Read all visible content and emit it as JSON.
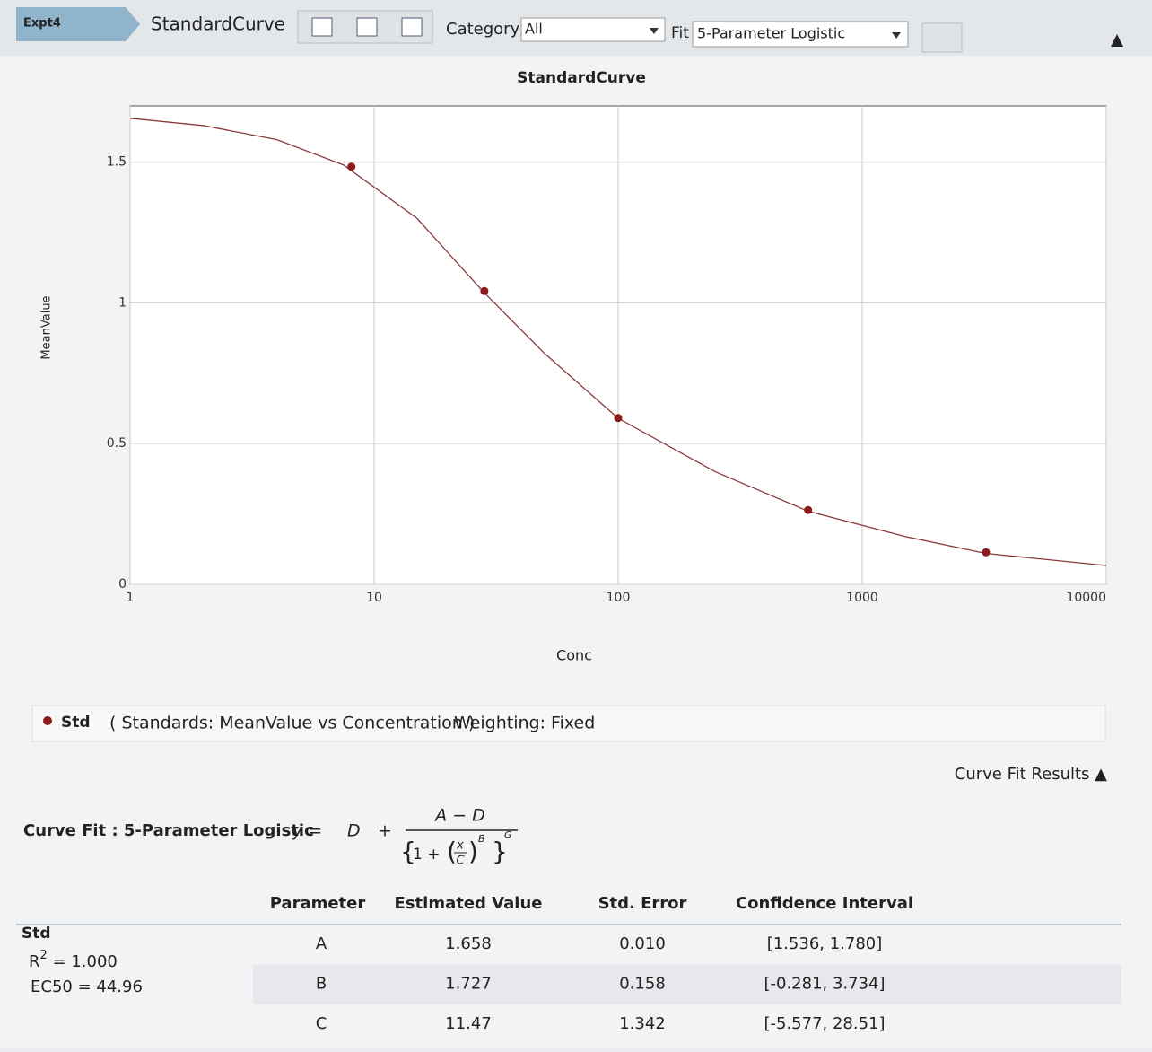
{
  "toolbar": {
    "tab": "Expt4",
    "view": "StandardCurve",
    "category_label": "Category",
    "category_value": "All",
    "fit_label": "Fit",
    "fit_value": "5-Parameter Logistic"
  },
  "chart_data": {
    "type": "line",
    "title": "StandardCurve",
    "x_label": "Conc",
    "y_label": "MeanValue",
    "log_x": true,
    "grid": true,
    "xlim": [
      1,
      10000
    ],
    "xticks": [
      1,
      10,
      100,
      1000,
      10000
    ],
    "ylim": [
      0,
      1.7
    ],
    "yticks": [
      0,
      0.5,
      1,
      1.5
    ],
    "x": [
      8.07,
      28.3,
      100,
      600,
      3215
    ],
    "series": [
      {
        "name": "Std",
        "color": "#8b1a1a",
        "values": [
          1.484,
          1.042,
          0.591,
          0.264,
          0.114
        ]
      },
      {
        "color": "#8b3a3a",
        "x": [
          1,
          2,
          4,
          7.5,
          15,
          28,
          50,
          100,
          250,
          600,
          1500,
          3200,
          10000
        ],
        "values": [
          1.656,
          1.63,
          1.58,
          1.49,
          1.3,
          1.04,
          0.82,
          0.59,
          0.4,
          0.26,
          0.17,
          0.11,
          0.067
        ]
      }
    ]
  },
  "legend": {
    "series": "Std",
    "description": "( Standards: MeanValue vs Concentration )",
    "weighting": "Weighting: Fixed"
  },
  "results_toggle": "Curve Fit Results ▲",
  "fit_title": "Curve Fit : 5-Parameter Logistic",
  "formula": {
    "lhs": "y =",
    "d": "D",
    "plus": "+",
    "numerator": "A − D",
    "one": "1 +",
    "x": "x",
    "c": "C",
    "b": "B",
    "g": "G"
  },
  "summary": {
    "series": "Std",
    "r": "R",
    "r_sup": "2",
    "r_value": " = 1.000",
    "ec50": "EC50 = 44.96"
  },
  "table": {
    "headers": [
      "Parameter",
      "Estimated Value",
      "Std. Error",
      "Confidence Interval"
    ],
    "rows": [
      [
        "A",
        "1.658",
        "0.010",
        "[1.536, 1.780]"
      ],
      [
        "B",
        "1.727",
        "0.158",
        "[-0.281, 3.734]"
      ],
      [
        "C",
        "11.47",
        "1.342",
        "[-5.577, 28.51]"
      ]
    ]
  }
}
